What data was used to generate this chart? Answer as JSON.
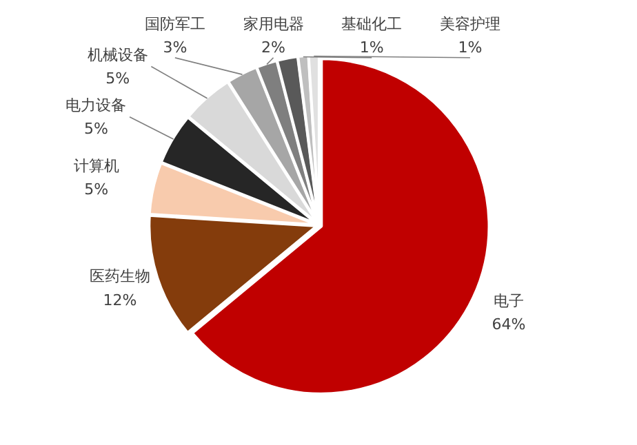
{
  "chart_data": {
    "type": "pie",
    "value_labels": [
      "64%",
      "12%",
      "5%",
      "5%",
      "5%",
      "3%",
      "2%",
      null,
      "1%",
      "1%"
    ],
    "categories": [
      "电子",
      "医药生物",
      "计算机",
      "电力设备",
      "机械设备",
      "国防军工",
      "家用电器",
      null,
      "基础化工",
      "美容护理"
    ],
    "values": [
      64,
      12,
      5,
      5,
      5,
      3,
      2,
      2,
      1,
      1
    ],
    "colors": [
      "#c00000",
      "#843c0c",
      "#f8cbad",
      "#262626",
      "#d9d9d9",
      "#a6a6a6",
      "#7f7f7f",
      "#595959",
      "#bfbfbf",
      "#e0e0e0"
    ]
  }
}
